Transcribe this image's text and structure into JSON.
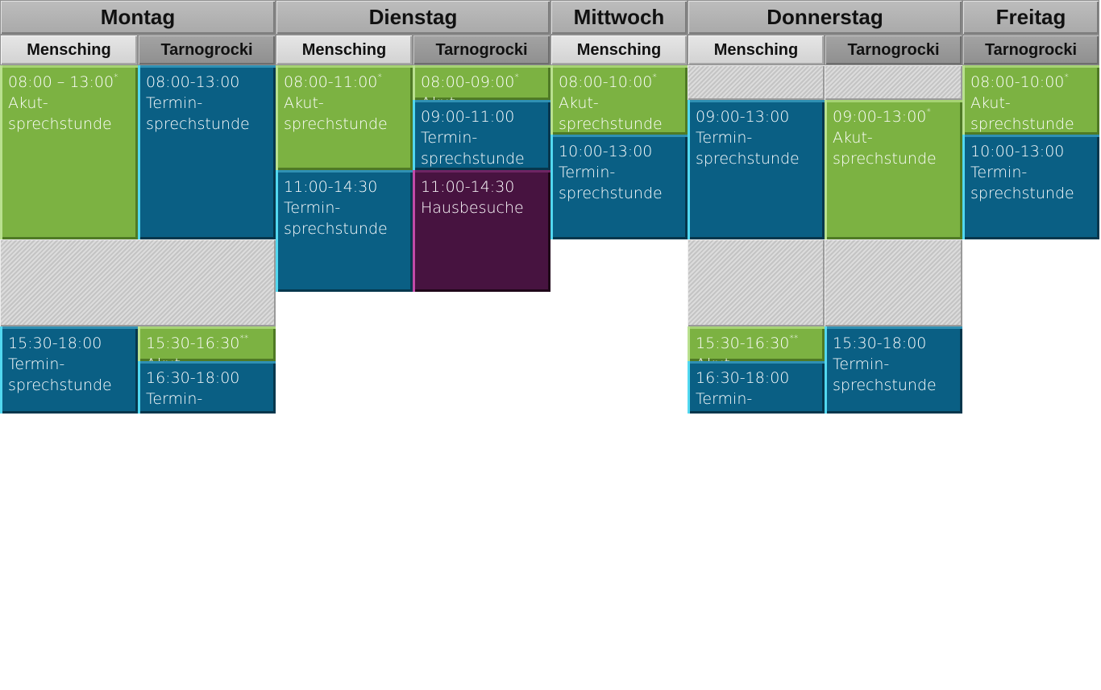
{
  "days": [
    {
      "label": "Montag",
      "doctors": [
        "Mensching",
        "Tarnogrocki"
      ]
    },
    {
      "label": "Dienstag",
      "doctors": [
        "Mensching",
        "Tarnogrocki"
      ]
    },
    {
      "label": "Mittwoch",
      "doctors": [
        "Mensching"
      ]
    },
    {
      "label": "Donnerstag",
      "doctors": [
        "Mensching",
        "Tarnogrocki"
      ]
    },
    {
      "label": "Freitag",
      "doctors": [
        "Tarnogrocki"
      ]
    }
  ],
  "slot_types": {
    "akut": {
      "label": "Akut-\nsprechstunde",
      "color": "#7cb242"
    },
    "termin": {
      "label": "Termin-\nsprechstunde",
      "color": "#0a5f84"
    },
    "haus": {
      "label": "Hausbesuche",
      "color": "#471340"
    },
    "closed": {
      "label": "",
      "color": "#cccccc"
    }
  },
  "slots": [
    {
      "col": 0,
      "from": "08:00",
      "to": "13:00",
      "time": "08:00 – 13:00",
      "mark": "*",
      "type": "akut"
    },
    {
      "col": 1,
      "from": "08:00",
      "to": "13:00",
      "time": "08:00-13:00",
      "mark": "",
      "type": "termin"
    },
    {
      "col": 0,
      "from": "13:00",
      "to": "15:30",
      "time": "",
      "mark": "",
      "type": "closed",
      "span": 2
    },
    {
      "col": 0,
      "from": "15:30",
      "to": "18:00",
      "time": "15:30-18:00",
      "mark": "",
      "type": "termin"
    },
    {
      "col": 1,
      "from": "15:30",
      "to": "16:30",
      "time": "15:30-16:30",
      "mark": "**",
      "type": "akut"
    },
    {
      "col": 1,
      "from": "16:30",
      "to": "18:00",
      "time": "16:30-18:00",
      "mark": "",
      "type": "termin"
    },
    {
      "col": 2,
      "from": "08:00",
      "to": "11:00",
      "time": "08:00-11:00",
      "mark": "*",
      "type": "akut"
    },
    {
      "col": 2,
      "from": "11:00",
      "to": "14:30",
      "time": "11:00-14:30",
      "mark": "",
      "type": "termin"
    },
    {
      "col": 3,
      "from": "08:00",
      "to": "09:00",
      "time": "08:00-09:00",
      "mark": "*",
      "type": "akut"
    },
    {
      "col": 3,
      "from": "09:00",
      "to": "11:00",
      "time": "09:00-11:00",
      "mark": "",
      "type": "termin"
    },
    {
      "col": 3,
      "from": "11:00",
      "to": "14:30",
      "time": "11:00-14:30",
      "mark": "",
      "type": "haus"
    },
    {
      "col": 4,
      "from": "08:00",
      "to": "10:00",
      "time": "08:00-10:00",
      "mark": "*",
      "type": "akut"
    },
    {
      "col": 4,
      "from": "10:00",
      "to": "13:00",
      "time": "10:00-13:00",
      "mark": "",
      "type": "termin"
    },
    {
      "col": 5,
      "from": "08:00",
      "to": "09:00",
      "time": "",
      "mark": "",
      "type": "closed"
    },
    {
      "col": 5,
      "from": "09:00",
      "to": "13:00",
      "time": "09:00-13:00",
      "mark": "",
      "type": "termin"
    },
    {
      "col": 5,
      "from": "13:00",
      "to": "15:30",
      "time": "",
      "mark": "",
      "type": "closed"
    },
    {
      "col": 5,
      "from": "15:30",
      "to": "16:30",
      "time": "15:30-16:30",
      "mark": "**",
      "type": "akut"
    },
    {
      "col": 5,
      "from": "16:30",
      "to": "18:00",
      "time": "16:30-18:00",
      "mark": "",
      "type": "termin"
    },
    {
      "col": 6,
      "from": "08:00",
      "to": "09:00",
      "time": "",
      "mark": "",
      "type": "closed"
    },
    {
      "col": 6,
      "from": "09:00",
      "to": "13:00",
      "time": "09:00-13:00",
      "mark": "*",
      "type": "akut"
    },
    {
      "col": 6,
      "from": "13:00",
      "to": "15:30",
      "time": "",
      "mark": "",
      "type": "closed"
    },
    {
      "col": 6,
      "from": "15:30",
      "to": "18:00",
      "time": "15:30-18:00",
      "mark": "",
      "type": "termin"
    },
    {
      "col": 7,
      "from": "08:00",
      "to": "10:00",
      "time": "08:00-10:00",
      "mark": "*",
      "type": "akut"
    },
    {
      "col": 7,
      "from": "10:00",
      "to": "13:00",
      "time": "10:00-13:00",
      "mark": "",
      "type": "termin"
    }
  ]
}
